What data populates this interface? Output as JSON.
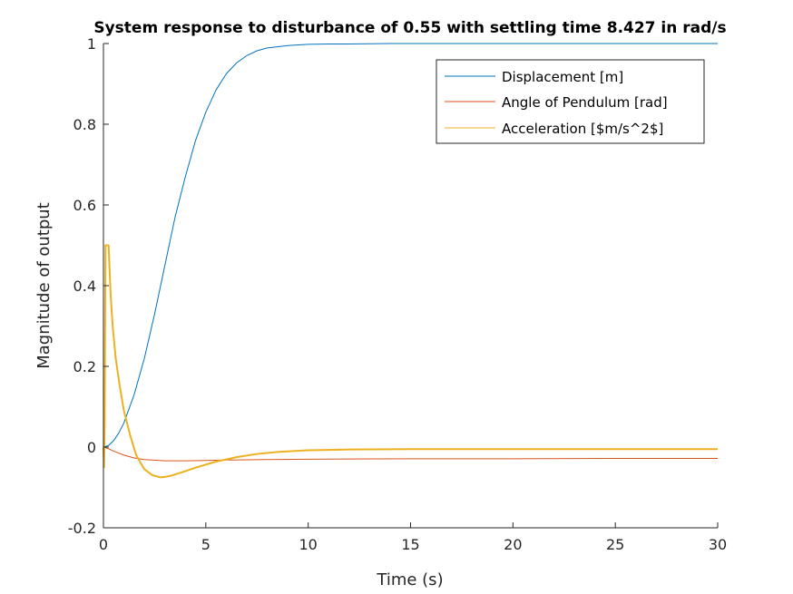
{
  "chart_data": {
    "type": "line",
    "title": "System response to disturbance of 0.55 with settling time 8.427 in rad/s",
    "xlabel": "Time (s)",
    "ylabel": "Magnitude of output",
    "xlim": [
      0,
      30
    ],
    "ylim": [
      -0.2,
      1
    ],
    "xticks": [
      0,
      5,
      10,
      15,
      20,
      25,
      30
    ],
    "yticks": [
      -0.2,
      0,
      0.2,
      0.4,
      0.6,
      0.8,
      1
    ],
    "xtick_labels": [
      "0",
      "5",
      "10",
      "15",
      "20",
      "25",
      "30"
    ],
    "ytick_labels": [
      "-0.2",
      "0",
      "0.2",
      "0.4",
      "0.6",
      "0.8",
      "1"
    ],
    "grid": false,
    "legend_position": "top-right",
    "series": [
      {
        "name": "Displacement [m]",
        "color": "#0072BD",
        "x": [
          0,
          0.25,
          0.5,
          0.75,
          1,
          1.5,
          2,
          2.5,
          3,
          3.5,
          4,
          4.5,
          5,
          5.5,
          6,
          6.5,
          7,
          7.5,
          8,
          9,
          10,
          11,
          12,
          14,
          16,
          20,
          25,
          30
        ],
        "y": [
          0,
          0.004,
          0.016,
          0.035,
          0.06,
          0.13,
          0.22,
          0.33,
          0.45,
          0.57,
          0.67,
          0.76,
          0.83,
          0.885,
          0.925,
          0.952,
          0.97,
          0.982,
          0.989,
          0.995,
          0.998,
          0.999,
          0.999,
          1.0,
          1.0,
          1.0,
          1.0,
          1.0
        ]
      },
      {
        "name": "Angle of Pendulum [rad]",
        "color": "#D95319",
        "x": [
          0,
          0.25,
          0.5,
          1,
          1.5,
          2,
          3,
          4,
          5,
          6,
          8,
          10,
          15,
          20,
          25,
          30
        ],
        "y": [
          0,
          -0.004,
          -0.01,
          -0.02,
          -0.027,
          -0.031,
          -0.034,
          -0.034,
          -0.033,
          -0.032,
          -0.031,
          -0.03,
          -0.029,
          -0.029,
          -0.028,
          -0.028
        ]
      },
      {
        "name": "Acceleration [$m/s^2$]",
        "color": "#EDB120",
        "x": [
          0,
          0.03,
          0.06,
          0.1,
          0.15,
          0.2,
          0.25,
          0.3,
          0.35,
          0.45,
          0.6,
          0.8,
          1.0,
          1.3,
          1.6,
          2.0,
          2.4,
          2.8,
          3.0,
          3.3,
          3.8,
          4.5,
          5.5,
          6.5,
          7.5,
          8.5,
          10,
          12,
          15,
          20,
          25,
          30
        ],
        "y": [
          0,
          -0.05,
          0.06,
          0.5,
          0.5,
          0.5,
          0.5,
          0.44,
          0.38,
          0.3,
          0.22,
          0.15,
          0.09,
          0.03,
          -0.02,
          -0.055,
          -0.07,
          -0.075,
          -0.074,
          -0.071,
          -0.063,
          -0.051,
          -0.036,
          -0.025,
          -0.017,
          -0.012,
          -0.008,
          -0.006,
          -0.005,
          -0.005,
          -0.005,
          -0.005
        ]
      }
    ]
  }
}
